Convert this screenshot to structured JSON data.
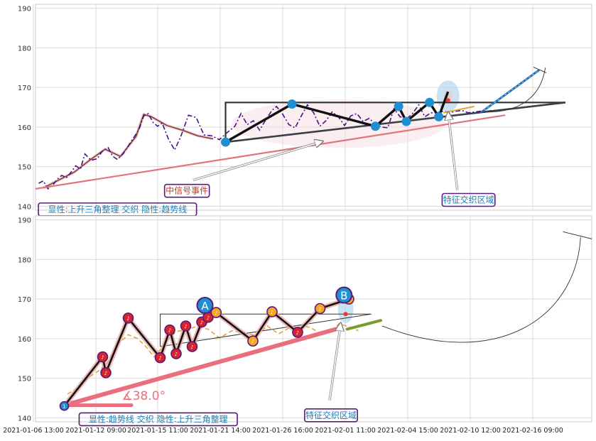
{
  "chart_data": [
    {
      "type": "line",
      "panel": "top",
      "ylim": [
        139,
        191
      ],
      "yticks": [
        140,
        150,
        160,
        170,
        180,
        190
      ],
      "grid": true,
      "series": [
        {
          "role": "price-dashdot",
          "x": [
            0.2,
            0.5,
            0.8,
            1.1,
            1.4,
            1.7,
            2.0,
            2.3,
            2.6,
            2.9,
            3.2,
            3.6,
            4.0,
            4.3,
            4.7,
            5.0,
            5.3,
            5.7,
            6.0,
            6.3,
            6.7,
            7.0,
            7.3,
            7.6,
            7.9,
            8.2,
            8.6,
            9.0,
            9.4,
            9.9,
            10.4,
            10.9,
            11.4,
            11.9,
            12.4,
            12.9,
            13.3,
            13.7,
            14.1,
            14.5,
            14.9,
            15.3,
            15.6,
            16.0,
            16.4,
            16.8,
            17.2,
            17.6,
            18.0,
            18.4,
            18.8,
            19.2,
            19.6,
            20.0,
            20.4,
            20.8,
            21.2,
            21.6,
            22.0,
            22.4,
            22.8,
            23.2,
            23.6,
            24.0,
            24.4,
            24.8,
            25.2,
            25.6,
            26.0,
            26.4,
            26.8,
            27.2,
            27.6,
            28.0,
            28.4,
            28.8,
            29.2,
            29.6,
            30.0,
            30.4
          ],
          "y": [
            145.8,
            146.4,
            144.4,
            145.2,
            146.8,
            147.8,
            147.2,
            148.6,
            150.2,
            149.4,
            153.2,
            151.6,
            152.0,
            153.8,
            154.8,
            152.6,
            151.8,
            153.4,
            155.2,
            157.0,
            159.4,
            162.8,
            163.4,
            161.2,
            160.2,
            161.0,
            157.0,
            154.2,
            157.6,
            163.0,
            162.4,
            158.0,
            157.8,
            156.8,
            158.6,
            160.2,
            163.4,
            160.6,
            161.6,
            159.2,
            161.8,
            164.2,
            165.2,
            163.2,
            160.6,
            159.8,
            162.8,
            165.6,
            163.6,
            160.2,
            161.6,
            163.8,
            162.6,
            160.4,
            162.8,
            163.4,
            161.4,
            162.2,
            160.6,
            160.0,
            159.8,
            164.6,
            162.6,
            162.0,
            163.4,
            165.6,
            162.6,
            163.6,
            163.6,
            164.0,
            163.6,
            164.0,
            164.2,
            163.6,
            163.8,
            164.0,
            164.0,
            164.2,
            164.2,
            164.2
          ]
        },
        {
          "role": "price-smooth",
          "x": [
            0.5,
            1.5,
            2.5,
            3.5,
            4.5,
            5.5,
            6.5,
            7.0,
            7.5,
            8.5,
            9.5,
            10.5,
            11.5
          ],
          "y": [
            144.6,
            146.6,
            148.6,
            151.6,
            154.4,
            152.6,
            157.6,
            163.2,
            162.6,
            160.4,
            159.2,
            157.8,
            157.0
          ]
        },
        {
          "role": "trendline",
          "x": [
            0.0,
            30.4
          ],
          "y": [
            144.4,
            163.0
          ]
        }
      ],
      "pattern_points": [
        {
          "x": 12.3,
          "y": 156.2
        },
        {
          "x": 16.6,
          "y": 165.8
        },
        {
          "x": 22.0,
          "y": 160.2
        },
        {
          "x": 23.5,
          "y": 165.2
        },
        {
          "x": 24.0,
          "y": 161.4
        },
        {
          "x": 25.5,
          "y": 166.2
        },
        {
          "x": 26.1,
          "y": 162.6
        }
      ],
      "breakout_point": {
        "x": 26.7,
        "y": 168.9
      },
      "triangle": {
        "x": [
          12.3,
          34.3
        ],
        "top": 166.2,
        "apex_y": 166.2,
        "base_y": 156.2
      },
      "target_line": {
        "x": [
          28.8,
          32.6
        ],
        "y": [
          163.6,
          174.4
        ]
      },
      "annotations": [
        {
          "text": "中信号事件",
          "x": 9.8,
          "y": 143.9
        },
        {
          "text": "显性:上升三角整理 交织 隐性:趋势线",
          "x": 4.2,
          "y": 139.2
        },
        {
          "text": "特征交织区域",
          "x": 27.2,
          "y": 141.6
        }
      ]
    },
    {
      "type": "line",
      "panel": "bottom",
      "ylim": [
        139,
        191
      ],
      "yticks": [
        140,
        150,
        160,
        170,
        180,
        190
      ],
      "grid": true,
      "xticks": [
        "2021-01-06 13:00",
        "2021-01-12 09:00",
        "2021-01-15 11:00",
        "2021-01-21 14:00",
        "2021-01-26 16:00",
        "2021-02-01 11:00",
        "2021-02-04 15:00",
        "2021-02-10 12:00",
        "2021-02-16 09:00"
      ],
      "series": [
        {
          "role": "zigzag",
          "x": [
            0.0,
            2.4,
            2.6,
            4.0,
            6.0,
            6.6,
            7.0,
            7.6,
            8.0,
            8.6,
            9.0,
            9.5,
            11.8,
            13.0,
            14.6,
            16.0,
            17.8
          ],
          "y": [
            143.0,
            155.4,
            151.4,
            165.2,
            155.2,
            162.2,
            156.2,
            163.2,
            158.0,
            164.2,
            165.4,
            166.6,
            159.4,
            166.8,
            161.6,
            167.6,
            170.0
          ]
        },
        {
          "role": "trendline",
          "x": [
            0.0,
            17.0
          ],
          "y": [
            143.2,
            162.4
          ]
        },
        {
          "role": "dashed-price",
          "x": [
            0.2,
            1.0,
            1.6,
            2.2,
            2.7,
            3.3,
            4.0,
            4.6,
            5.2,
            5.6,
            6.0,
            6.5,
            7.0,
            7.6,
            8.2,
            9.0,
            9.7,
            10.5,
            11.3,
            12.0,
            12.7,
            13.4,
            14.1,
            14.8,
            15.4,
            16.0,
            16.6,
            17.2,
            17.8,
            18.4
          ],
          "y": [
            146.0,
            148.0,
            150.4,
            152.0,
            154.0,
            158.4,
            161.0,
            160.0,
            157.6,
            155.4,
            157.2,
            159.8,
            161.8,
            162.2,
            163.0,
            162.4,
            160.2,
            162.0,
            161.4,
            160.8,
            163.2,
            161.2,
            162.8,
            163.4,
            162.8,
            161.4,
            161.6,
            163.8,
            163.0,
            162.0
          ]
        }
      ],
      "triangle": {
        "x": [
          6.0,
          19.2
        ],
        "top": 166.2,
        "apex_y": 166.2,
        "base_y": 158.0
      },
      "labels": [
        {
          "text": "A",
          "x": 8.8,
          "y": 168.4
        },
        {
          "text": "B",
          "x": 17.5,
          "y": 171.0
        }
      ],
      "angle_label": "∡38.0°",
      "annotations": [
        {
          "text": "显性:趋势线 交织 隐性:上升三角整理",
          "x": 4.1,
          "y": 140.0
        },
        {
          "text": "特征交织区域",
          "x": 15.8,
          "y": 141.0
        }
      ]
    }
  ]
}
